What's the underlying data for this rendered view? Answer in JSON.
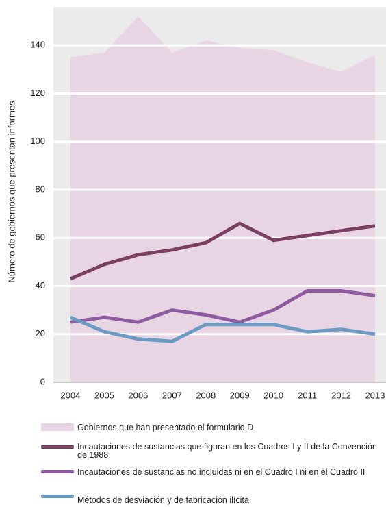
{
  "chart_data": {
    "type": "line",
    "y_label": "Número de gobiernos que presentan informes",
    "categories": [
      "2004",
      "2005",
      "2006",
      "2007",
      "2008",
      "2009",
      "2010",
      "2011",
      "2012",
      "2013"
    ],
    "ylim": [
      0,
      156
    ],
    "yticks": [
      0,
      20,
      40,
      60,
      80,
      100,
      120,
      140
    ],
    "grid": true,
    "background": "#ebebeb",
    "series": [
      {
        "name": "Gobiernos que han presentado el formulario D",
        "type": "area",
        "color": "#e8d5e3",
        "values": [
          135,
          137,
          152,
          137,
          142,
          139,
          138,
          133,
          129,
          136
        ]
      },
      {
        "name": "Incautaciones de sustancias que figuran en los Cuadros I y II de la Convención de 1988",
        "type": "line",
        "color": "#7b3f61",
        "values": [
          43,
          49,
          53,
          55,
          58,
          66,
          59,
          61,
          63,
          65
        ]
      },
      {
        "name": "Incautaciones de sustancias no incluidas ni en el Cuadro I ni en el Cuadro II",
        "type": "line",
        "color": "#8e5aa0",
        "values": [
          25,
          27,
          25,
          30,
          28,
          25,
          30,
          38,
          38,
          36
        ]
      },
      {
        "name": "Métodos de desviación y de fabricación ilícita",
        "type": "line",
        "color": "#6b9bc3",
        "values": [
          27,
          21,
          18,
          17,
          24,
          24,
          24,
          21,
          22,
          20
        ]
      }
    ]
  }
}
